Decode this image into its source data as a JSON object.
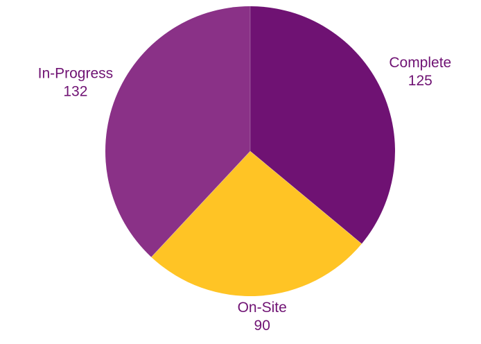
{
  "chart_data": {
    "type": "pie",
    "title": "",
    "slices": [
      {
        "label": "Complete",
        "value": 125,
        "color": "#6f1273"
      },
      {
        "label": "On-Site",
        "value": 90,
        "color": "#ffc425"
      },
      {
        "label": "In-Progress",
        "value": 132,
        "color": "#8a3187"
      }
    ],
    "legend": "none",
    "start_angle": "12 o'clock",
    "direction": "clockwise",
    "label_color": "#6f1273"
  }
}
